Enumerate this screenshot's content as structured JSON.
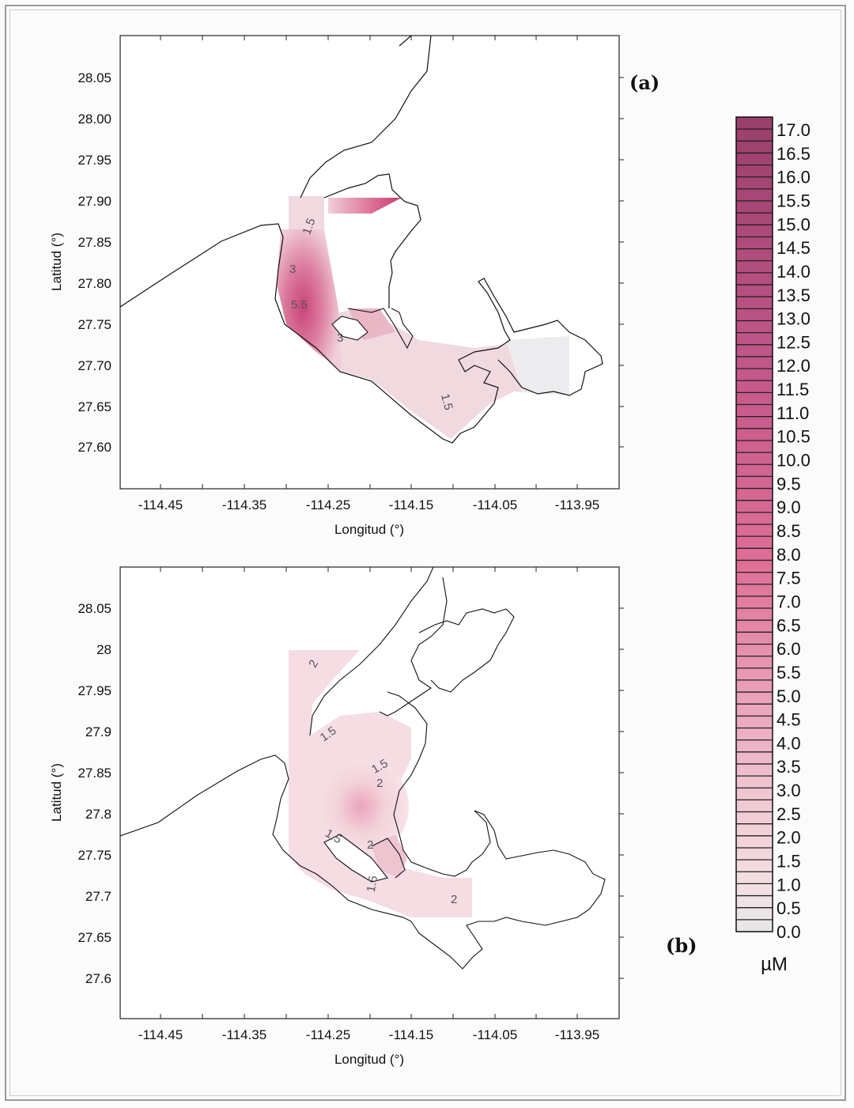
{
  "panels": [
    {
      "id": "a",
      "label": "(a)",
      "xlabel": "Longitud (°)",
      "ylabel": "Latitud (°)",
      "x_ticks": [
        "-114.45",
        "-114.35",
        "-114.25",
        "-114.15",
        "-114.05",
        "-113.95"
      ],
      "y_ticks": [
        "28.05",
        "28.00",
        "27.95",
        "27.90",
        "27.85",
        "27.80",
        "27.75",
        "27.70",
        "27.65",
        "27.60"
      ],
      "contour_labels": [
        "1.5",
        "3",
        "5.5",
        "3",
        "1.5"
      ]
    },
    {
      "id": "b",
      "label": "(b)",
      "xlabel": "Longitud (°)",
      "ylabel": "Latitud (°)",
      "x_ticks": [
        "-114.45",
        "-114.35",
        "-114.25",
        "-114.15",
        "-114.05",
        "-113.95"
      ],
      "y_ticks": [
        "28.05",
        "28",
        "27.95",
        "27.9",
        "27.85",
        "27.8",
        "27.75",
        "27.7",
        "27.65",
        "27.6"
      ],
      "contour_labels": [
        "2",
        "1.5",
        "1.5",
        "2",
        "1.5",
        "2",
        "1.5",
        "2"
      ]
    }
  ],
  "colorbar": {
    "unit": "µM",
    "ticks": [
      "17.0",
      "16.5",
      "16.0",
      "15.5",
      "15.0",
      "14.5",
      "14.0",
      "13.5",
      "13.0",
      "12.5",
      "12.0",
      "11.5",
      "11.0",
      "10.5",
      "10.0",
      "9.5",
      "9.0",
      "8.5",
      "8.0",
      "7.5",
      "7.0",
      "6.5",
      "6.0",
      "5.5",
      "5.0",
      "4.5",
      "4.0",
      "3.5",
      "3.0",
      "2.5",
      "2.0",
      "1.5",
      "1.0",
      "0.5",
      "0.0"
    ],
    "color_low": "#e6e6e6",
    "color_mid": "#de6a93",
    "color_high": "#9a3f6b"
  },
  "colors": {
    "fill_light": "#f3dfe4",
    "fill_mid": "#eab8c8",
    "fill_dark": "#cf4f80",
    "coast": "#111111"
  }
}
